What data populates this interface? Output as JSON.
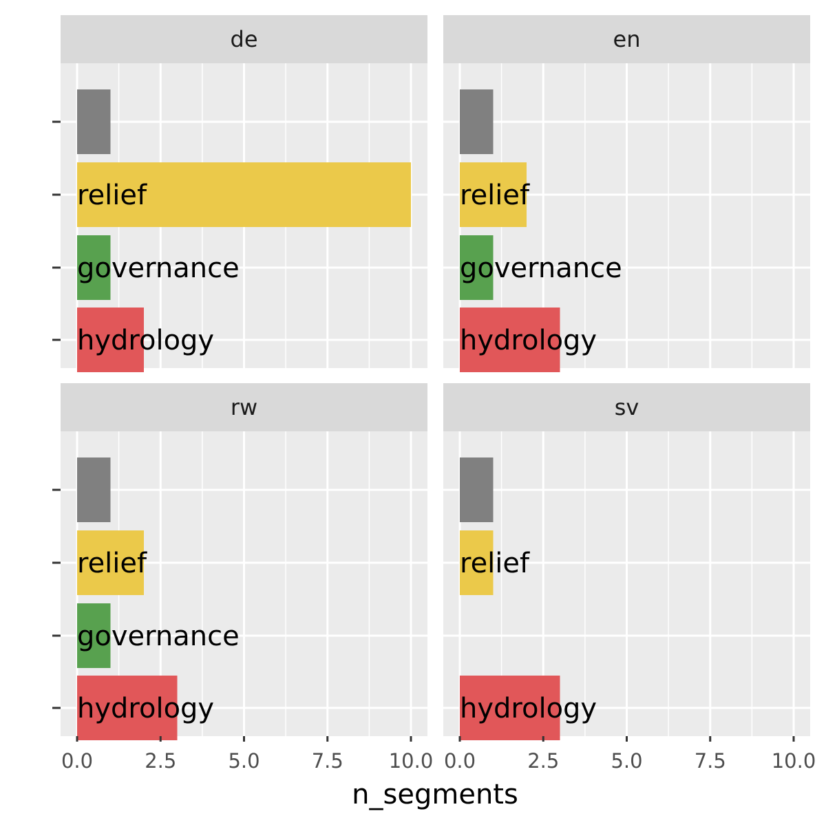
{
  "chart_data": {
    "type": "bar",
    "orientation": "horizontal",
    "facet_by": "language",
    "xlabel": "n_segments",
    "ylabel": "",
    "xlim": [
      0,
      10
    ],
    "x_ticks": [
      "0.0",
      "2.5",
      "5.0",
      "7.5",
      "10.0"
    ],
    "x_tick_values": [
      0,
      2.5,
      5,
      7.5,
      10
    ],
    "categories": [
      "",
      "relief",
      "governance",
      "hydrology"
    ],
    "category_colors": [
      "#808080",
      "#EBC94A",
      "#58A14F",
      "#E15759"
    ],
    "grid": true,
    "legend": "none",
    "panels": [
      {
        "facet": "de",
        "values": [
          1,
          10,
          1,
          2
        ]
      },
      {
        "facet": "en",
        "values": [
          1,
          2,
          1,
          3
        ]
      },
      {
        "facet": "rw",
        "values": [
          1,
          2,
          1,
          3
        ]
      },
      {
        "facet": "sv",
        "values": [
          1,
          1,
          0,
          3
        ]
      }
    ]
  },
  "colors": {
    "panel_background": "#EBEBEB",
    "strip_background": "#D9D9D9",
    "grid_line": "#FFFFFF"
  }
}
